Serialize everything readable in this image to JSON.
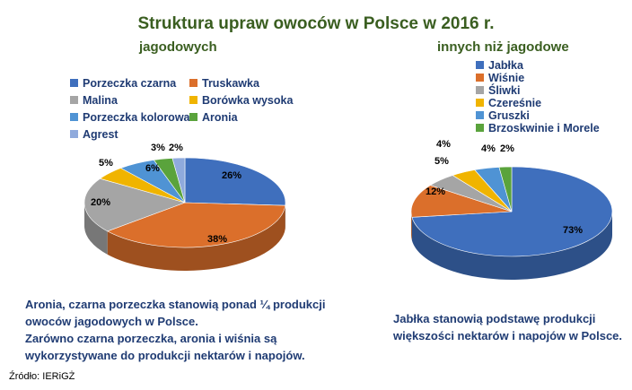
{
  "title": "Struktura upraw owoców w Polsce w 2016 r.",
  "chart_data": [
    {
      "type": "pie",
      "subtitle": "jagodowych",
      "labels": [
        "Porzeczka czarna",
        "Truskawka",
        "Malina",
        "Borówka wysoka",
        "Porzeczka kolorowa",
        "Aronia",
        "Agrest"
      ],
      "values": [
        26,
        38,
        20,
        5,
        6,
        3,
        2
      ],
      "value_labels": [
        "26%",
        "38%",
        "20%",
        "5%",
        "6%",
        "3%",
        "2%"
      ],
      "colors": [
        "#3f6fbd",
        "#db6f2b",
        "#a5a5a5",
        "#f0b400",
        "#4f93d4",
        "#5aa33c",
        "#8faadc"
      ],
      "legend_position": "top"
    },
    {
      "type": "pie",
      "subtitle": "innych niż jagodowe",
      "labels": [
        "Jabłka",
        "Wiśnie",
        "Śliwki",
        "Czereśnie",
        "Gruszki",
        "Brzoskwinie i Morele"
      ],
      "values": [
        73,
        12,
        5,
        4,
        4,
        2
      ],
      "value_labels": [
        "73%",
        "12%",
        "5%",
        "4%",
        "4%",
        "2%"
      ],
      "colors": [
        "#3f6fbd",
        "#db6f2b",
        "#a5a5a5",
        "#f0b400",
        "#4f93d4",
        "#5aa33c"
      ],
      "legend_position": "top-right"
    }
  ],
  "notes": {
    "left": [
      "Aronia, czarna porzeczka stanowią ponad ¼ produkcji",
      "owoców jagodowych w Polsce.",
      "Zarówno czarna porzeczka, aronia i wiśnia są",
      "wykorzystywane do produkcji nektarów i napojów."
    ],
    "right": [
      "Jabłka stanowią podstawę produkcji",
      "większości nektarów i napojów w Polsce."
    ]
  },
  "source": "Źródło: IERiGŻ"
}
